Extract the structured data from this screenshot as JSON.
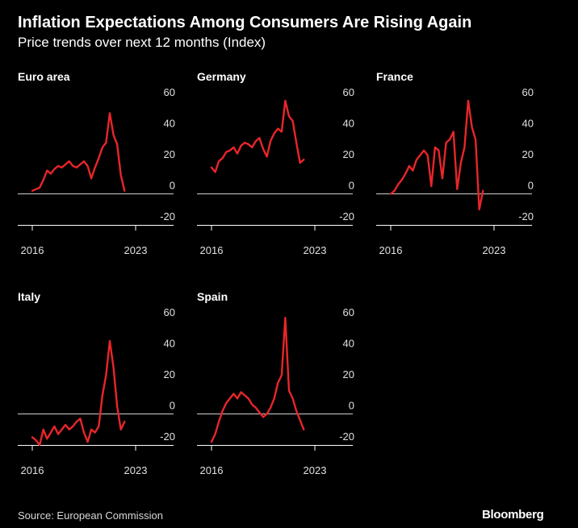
{
  "header": {
    "title": "Inflation Expectations Among Consumers Are Rising Again",
    "subtitle": "Price trends over next 12 months (Index)"
  },
  "footer": {
    "source": "Source: European Commission",
    "brand": "Bloomberg"
  },
  "colors": {
    "background": "#000000",
    "series": "#e8262a",
    "axis": "#ffffff",
    "text": "#ffffff"
  },
  "chart_data": [
    {
      "type": "line",
      "title": "Euro area",
      "ylim": [
        -20,
        60
      ],
      "yticks": [
        60,
        40,
        20,
        0,
        -20
      ],
      "xticks": [
        {
          "value": 2016,
          "label": "2016"
        },
        {
          "value": 2023,
          "label": "2023"
        }
      ],
      "x_start": 2016,
      "step": 0.25,
      "series": [
        {
          "values": [
            2,
            3,
            4,
            9,
            15,
            13,
            16,
            18,
            17,
            19,
            21,
            18,
            17,
            19,
            21,
            18,
            10,
            17,
            23,
            30,
            33,
            52,
            38,
            32,
            12,
            2
          ]
        }
      ]
    },
    {
      "type": "line",
      "title": "Germany",
      "ylim": [
        -20,
        60
      ],
      "yticks": [
        60,
        40,
        20,
        0,
        -20
      ],
      "xticks": [
        {
          "value": 2016,
          "label": "2016"
        },
        {
          "value": 2023,
          "label": "2023"
        }
      ],
      "x_start": 2016,
      "step": 0.25,
      "series": [
        {
          "values": [
            17,
            14,
            21,
            23,
            27,
            28,
            30,
            26,
            31,
            33,
            32,
            30,
            34,
            36,
            29,
            24,
            34,
            39,
            42,
            40,
            60,
            50,
            47,
            33,
            20,
            22
          ]
        }
      ]
    },
    {
      "type": "line",
      "title": "France",
      "ylim": [
        -20,
        60
      ],
      "yticks": [
        60,
        40,
        20,
        0,
        -20
      ],
      "xticks": [
        {
          "value": 2016,
          "label": "2016"
        },
        {
          "value": 2023,
          "label": "2023"
        }
      ],
      "x_start": 2016,
      "step": 0.25,
      "series": [
        {
          "values": [
            0,
            2,
            6,
            9,
            13,
            18,
            15,
            22,
            25,
            28,
            25,
            5,
            30,
            28,
            10,
            33,
            35,
            40,
            3,
            20,
            30,
            60,
            43,
            35,
            -10,
            2
          ]
        }
      ]
    },
    {
      "type": "line",
      "title": "Italy",
      "ylim": [
        -20,
        60
      ],
      "yticks": [
        60,
        40,
        20,
        0,
        -20
      ],
      "xticks": [
        {
          "value": 2016,
          "label": "2016"
        },
        {
          "value": 2023,
          "label": "2023"
        }
      ],
      "x_start": 2016,
      "step": 0.25,
      "series": [
        {
          "values": [
            -15,
            -17,
            -20,
            -10,
            -16,
            -12,
            -8,
            -13,
            -10,
            -7,
            -10,
            -8,
            -5,
            -3,
            -12,
            -18,
            -10,
            -12,
            -8,
            12,
            25,
            47,
            30,
            5,
            -10,
            -5
          ]
        }
      ]
    },
    {
      "type": "line",
      "title": "Spain",
      "ylim": [
        -20,
        60
      ],
      "yticks": [
        60,
        40,
        20,
        0,
        -20
      ],
      "xticks": [
        {
          "value": 2016,
          "label": "2016"
        },
        {
          "value": 2023,
          "label": "2023"
        }
      ],
      "x_start": 2016,
      "step": 0.25,
      "series": [
        {
          "values": [
            -18,
            -13,
            -5,
            2,
            7,
            10,
            13,
            10,
            14,
            12,
            10,
            6,
            4,
            1,
            -2,
            0,
            4,
            10,
            20,
            25,
            62,
            15,
            10,
            2,
            -4,
            -10
          ]
        }
      ]
    }
  ]
}
